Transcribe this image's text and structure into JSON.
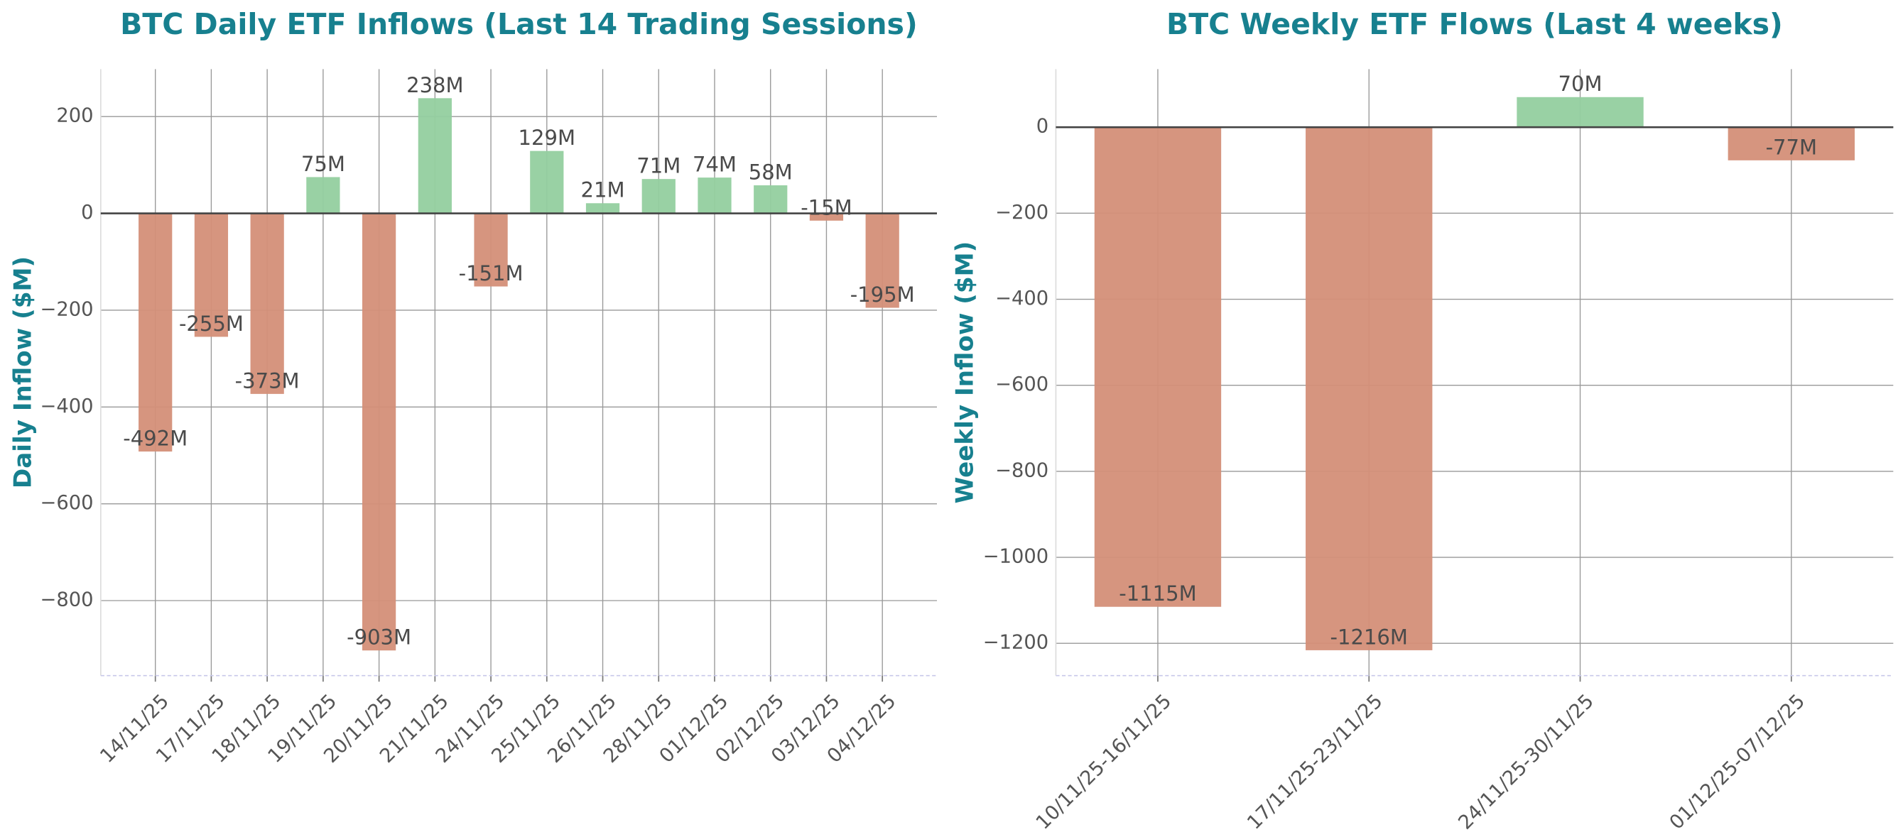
{
  "chart_data": [
    {
      "type": "bar",
      "title": "BTC Daily ETF Inflows (Last 14 Trading Sessions)",
      "y_label": "Daily Inflow ($M)",
      "categories": [
        "14/11/25",
        "17/11/25",
        "18/11/25",
        "19/11/25",
        "20/11/25",
        "21/11/25",
        "24/11/25",
        "25/11/25",
        "26/11/25",
        "28/11/25",
        "01/12/25",
        "02/12/25",
        "03/12/25",
        "04/12/25"
      ],
      "values": [
        -492,
        -255,
        -373,
        75,
        -903,
        238,
        -151,
        129,
        21,
        71,
        74,
        58,
        -15,
        -195
      ],
      "value_labels": [
        "-492M",
        "-255M",
        "-373M",
        "75M",
        "-903M",
        "238M",
        "-151M",
        "129M",
        "21M",
        "71M",
        "74M",
        "58M",
        "-15M",
        "-195M"
      ],
      "positive_color": "#93cf9f",
      "negative_color": "#d48f78",
      "ylim": [
        -955,
        298
      ],
      "yticks": [
        {
          "value": 200,
          "label": "200"
        },
        {
          "value": 0,
          "label": "0"
        },
        {
          "value": -200,
          "label": "−200"
        },
        {
          "value": -400,
          "label": "−400"
        },
        {
          "value": -600,
          "label": "−600"
        },
        {
          "value": -800,
          "label": "−800"
        }
      ],
      "grid": true
    },
    {
      "type": "bar",
      "title": "BTC Weekly ETF Flows (Last 4 weeks)",
      "y_label": "Weekly Inflow ($M)",
      "categories": [
        "10/11/25-16/11/25",
        "17/11/25-23/11/25",
        "24/11/25-30/11/25",
        "01/12/25-07/12/25"
      ],
      "values": [
        -1115,
        -1216,
        70,
        -77
      ],
      "value_labels": [
        "-1115M",
        "-1216M",
        "70M",
        "-77M"
      ],
      "positive_color": "#93cf9f",
      "negative_color": "#d48f78",
      "ylim": [
        -1275,
        135
      ],
      "yticks": [
        {
          "value": 0,
          "label": "0"
        },
        {
          "value": -200,
          "label": "−200"
        },
        {
          "value": -400,
          "label": "−400"
        },
        {
          "value": -600,
          "label": "−600"
        },
        {
          "value": -800,
          "label": "−800"
        },
        {
          "value": -1000,
          "label": "−1000"
        },
        {
          "value": -1200,
          "label": "−1200"
        }
      ],
      "grid": true
    }
  ]
}
